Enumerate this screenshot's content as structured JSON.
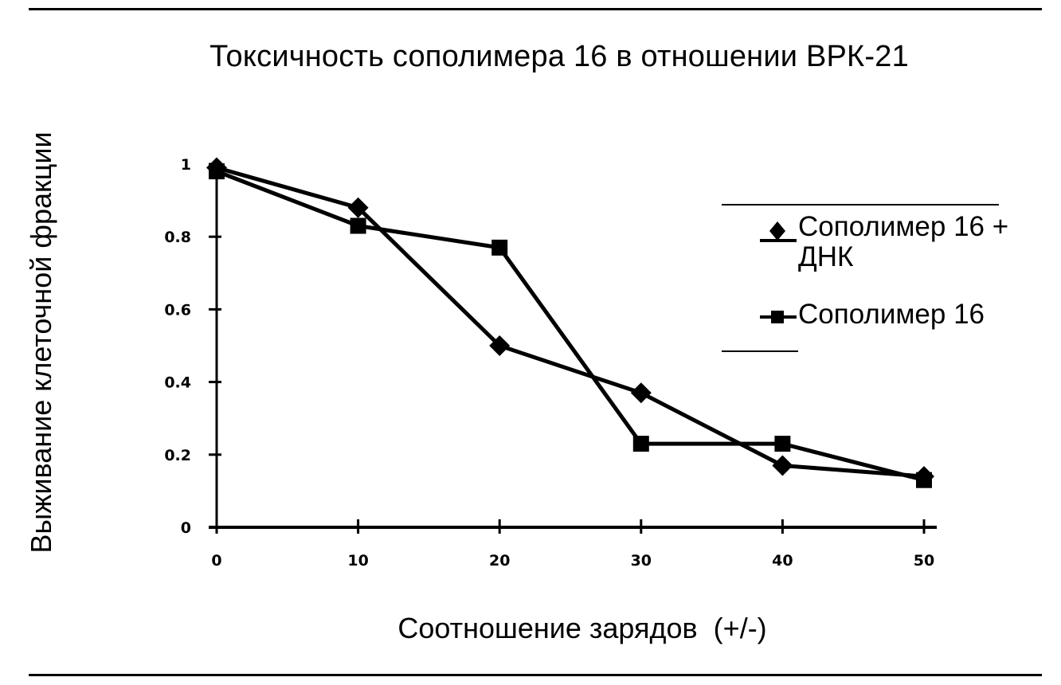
{
  "chart_data": {
    "type": "line",
    "title": "Токсичность сополимера 16 в отношении ВРК-21",
    "xlabel": "Соотношение зарядов  (+/-)",
    "ylabel": "Выживание клеточной фракции",
    "x": [
      0,
      10,
      20,
      30,
      40,
      50
    ],
    "x_ticks": [
      "0",
      "10",
      "20",
      "30",
      "40",
      "50"
    ],
    "y_ticks": [
      "0",
      "0.2",
      "0.4",
      "0.6",
      "0.8",
      "1"
    ],
    "xlim": [
      0,
      50
    ],
    "ylim": [
      0,
      1
    ],
    "grid": false,
    "legend_position": "right",
    "series": [
      {
        "name": "Сополимер 16 + ДНК",
        "marker": "diamond",
        "color": "#000000",
        "values": [
          0.99,
          0.88,
          0.5,
          0.37,
          0.17,
          0.14
        ]
      },
      {
        "name": "Сополимер 16",
        "marker": "square",
        "color": "#000000",
        "values": [
          0.98,
          0.83,
          0.77,
          0.23,
          0.23,
          0.13
        ]
      }
    ]
  }
}
